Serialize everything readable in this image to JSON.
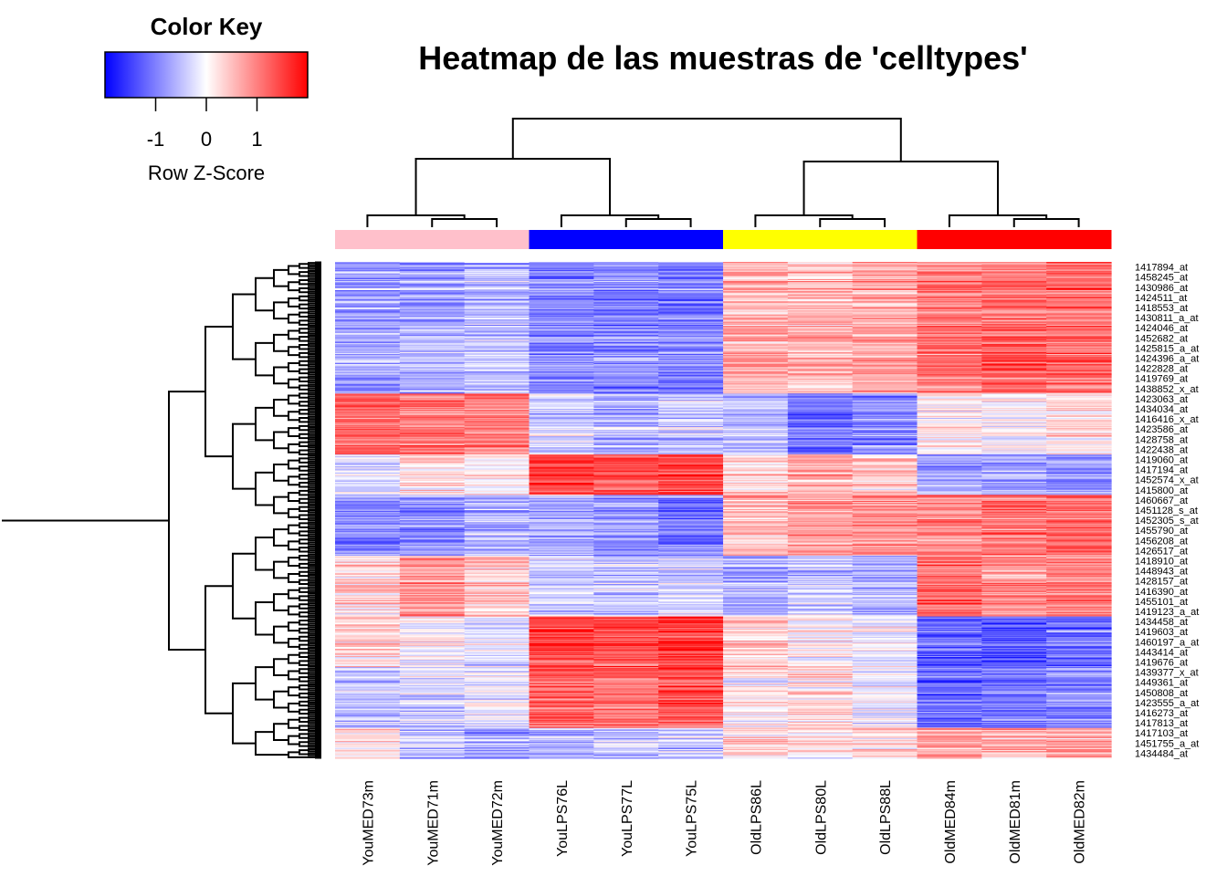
{
  "chart_data": {
    "type": "heatmap",
    "title": "Heatmap de las muestras de 'celltypes'",
    "color_key": {
      "title": "Color Key",
      "xlabel": "Row Z-Score",
      "ticks": [
        "-1",
        "0",
        "1"
      ],
      "tick_values": [
        -1,
        0,
        1
      ],
      "range": [
        -2,
        2
      ],
      "colors": {
        "low": "#0000ff",
        "mid": "#ffffff",
        "high": "#ff0000"
      }
    },
    "columns": [
      "YouMED73m",
      "YouMED71m",
      "YouMED72m",
      "YouLPS76L",
      "YouLPS77L",
      "YouLPS75L",
      "OldLPS86L",
      "OldLPS80L",
      "OldLPS88L",
      "OldMED84m",
      "OldMED81m",
      "OldMED82m"
    ],
    "column_groups": [
      {
        "color": "#ffc0cb",
        "columns": [
          0,
          1,
          2
        ]
      },
      {
        "color": "#0000ff",
        "columns": [
          3,
          4,
          5
        ]
      },
      {
        "color": "#ffff00",
        "columns": [
          6,
          7,
          8
        ]
      },
      {
        "color": "#ff0000",
        "columns": [
          9,
          10,
          11
        ]
      }
    ],
    "row_labels": [
      "1417894_at",
      "1458245_at",
      "1430986_at",
      "1424511_at",
      "1418553_at",
      "1430811_a_at",
      "1424046_at",
      "1452682_at",
      "1425815_a_at",
      "1424396_a_at",
      "1422828_at",
      "1419769_at",
      "1438852_x_at",
      "1423063_at",
      "1434034_at",
      "1416416_x_at",
      "1423586_at",
      "1428758_at",
      "1422438_at",
      "1419060_at",
      "1417194_at",
      "1452574_x_at",
      "1415800_at",
      "1460667_at",
      "1451128_s_at",
      "1452305_s_at",
      "1455790_at",
      "1456208_at",
      "1426517_at",
      "1418910_at",
      "1448943_at",
      "1428157_at",
      "1416390_at",
      "1455101_at",
      "1419123_a_at",
      "1434458_at",
      "1419603_at",
      "1460197_a_at",
      "1443414_at",
      "1419676_at",
      "1439377_x_at",
      "1449361_at",
      "1450808_at",
      "1423555_a_at",
      "1416273_at",
      "1417813_at",
      "1417103_at",
      "1451755_a_at",
      "1434484_at"
    ],
    "row_blocks": [
      {
        "rows": 13,
        "values": [
          -0.7,
          -0.6,
          -0.5,
          -0.9,
          -0.9,
          -1.0,
          0.6,
          0.6,
          0.7,
          1.1,
          1.2,
          1.2
        ]
      },
      {
        "rows": 6,
        "values": [
          1.2,
          1.1,
          1.0,
          -0.3,
          -0.6,
          -0.4,
          -0.5,
          -1.1,
          -0.9,
          0.1,
          0.0,
          0.2
        ]
      },
      {
        "rows": 4,
        "values": [
          -0.3,
          0.2,
          0.0,
          1.5,
          1.3,
          1.4,
          0.3,
          0.6,
          0.4,
          -0.8,
          -0.7,
          -0.9
        ]
      },
      {
        "rows": 6,
        "values": [
          -0.9,
          -0.8,
          -0.6,
          -0.7,
          -0.8,
          -1.0,
          0.6,
          0.8,
          0.9,
          0.9,
          1.1,
          1.2
        ]
      },
      {
        "rows": 6,
        "values": [
          0.3,
          0.8,
          0.5,
          -0.3,
          -0.4,
          -0.3,
          -0.6,
          -0.4,
          -0.6,
          1.2,
          0.9,
          1.0
        ]
      },
      {
        "rows": 5,
        "values": [
          0.3,
          0.0,
          -0.2,
          1.5,
          1.4,
          1.6,
          0.4,
          0.1,
          0.0,
          -1.2,
          -1.3,
          -1.1
        ]
      },
      {
        "rows": 6,
        "values": [
          -0.5,
          -0.3,
          -0.2,
          1.2,
          1.1,
          1.3,
          0.1,
          0.2,
          -0.2,
          -1.2,
          -1.1,
          -1.0
        ]
      },
      {
        "rows": 3,
        "values": [
          0.3,
          -0.5,
          -0.7,
          -0.6,
          -0.5,
          -0.4,
          0.3,
          0.2,
          0.3,
          0.8,
          0.6,
          0.7
        ]
      }
    ]
  }
}
